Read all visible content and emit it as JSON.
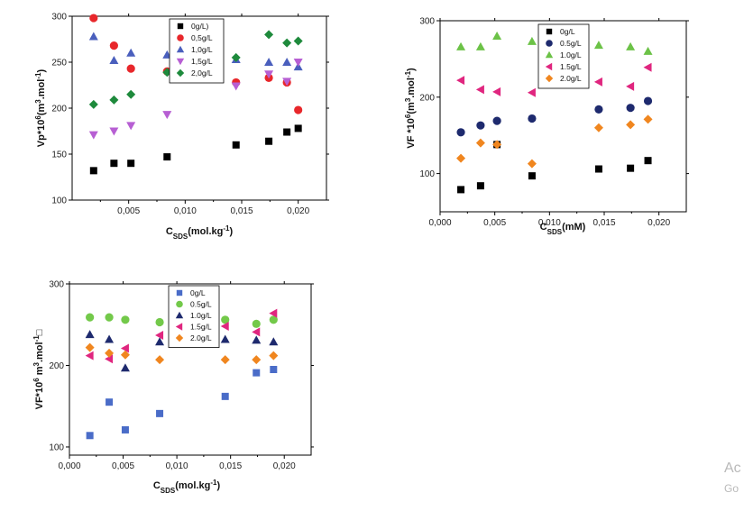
{
  "chart_data": [
    {
      "type": "scatter",
      "xlabel": {
        "main": "C",
        "sub": "SDS",
        "rest": "(mol.kg",
        "sup": "-1",
        "end": ")"
      },
      "ylabel": {
        "main": "Vp*10",
        "sup1": "6",
        "mid": "(m",
        "sup2": "3",
        "mid2": ".mol",
        "sup3": "-1",
        "end": ")"
      },
      "xlim": [
        0,
        0.0225
      ],
      "ylim": [
        100,
        300
      ],
      "xticks": [
        0.005,
        0.01,
        0.015,
        0.02
      ],
      "xtick_labels": [
        "0,005",
        "0,010",
        "0,015",
        "0,020"
      ],
      "yticks": [
        100,
        150,
        200,
        250,
        300
      ],
      "ytick_labels": [
        "100",
        "150",
        "200",
        "250",
        "300"
      ],
      "grid": false,
      "legend_position": "top-center",
      "series": [
        {
          "name": "0g/L)",
          "marker": "square",
          "color": "#000000",
          "points": [
            [
              0.0019,
              132
            ],
            [
              0.0037,
              140
            ],
            [
              0.0052,
              140
            ],
            [
              0.0084,
              147
            ],
            [
              0.0145,
              160
            ],
            [
              0.0174,
              164
            ],
            [
              0.019,
              174
            ],
            [
              0.02,
              178
            ]
          ]
        },
        {
          "name": "0,5g/L",
          "marker": "circle",
          "color": "#e8272b",
          "points": [
            [
              0.0019,
              298
            ],
            [
              0.0037,
              268
            ],
            [
              0.0052,
              243
            ],
            [
              0.0084,
              240
            ],
            [
              0.0145,
              228
            ],
            [
              0.0174,
              233
            ],
            [
              0.019,
              228
            ],
            [
              0.02,
              198
            ]
          ]
        },
        {
          "name": "1,0g/L",
          "marker": "triangle-up",
          "color": "#4a5fbd",
          "points": [
            [
              0.0019,
              278
            ],
            [
              0.0037,
              252
            ],
            [
              0.0052,
              260
            ],
            [
              0.0084,
              258
            ],
            [
              0.0145,
              253
            ],
            [
              0.0174,
              250
            ],
            [
              0.019,
              250
            ],
            [
              0.02,
              245
            ]
          ]
        },
        {
          "name": "1,5g/L",
          "marker": "triangle-down",
          "color": "#b75fd3",
          "points": [
            [
              0.0019,
              171
            ],
            [
              0.0037,
              175
            ],
            [
              0.0052,
              181
            ],
            [
              0.0084,
              193
            ],
            [
              0.0145,
              224
            ],
            [
              0.0174,
              237
            ],
            [
              0.019,
              229
            ],
            [
              0.02,
              250
            ]
          ]
        },
        {
          "name": "2,0g/L",
          "marker": "diamond",
          "color": "#1e8a3c",
          "points": [
            [
              0.0019,
              204
            ],
            [
              0.0037,
              209
            ],
            [
              0.0052,
              215
            ],
            [
              0.0084,
              239
            ],
            [
              0.0145,
              255
            ],
            [
              0.0174,
              280
            ],
            [
              0.019,
              271
            ],
            [
              0.02,
              273
            ]
          ]
        }
      ]
    },
    {
      "type": "scatter",
      "xlabel": {
        "main": "C",
        "sub": "SDS",
        "rest": "(mM)",
        "sup": "",
        "end": ""
      },
      "ylabel": {
        "main": "VF *10",
        "sup1": "6",
        "mid": "(m",
        "sup2": "3",
        "mid2": ".mol",
        "sup3": "-1",
        "end": ")"
      },
      "xlim": [
        0,
        0.0225
      ],
      "ylim": [
        50,
        300
      ],
      "xticks": [
        0.0,
        0.005,
        0.01,
        0.015,
        0.02
      ],
      "xtick_labels": [
        "0,000",
        "0,005",
        "0,010",
        "0,015",
        "0,020"
      ],
      "yticks": [
        100,
        200,
        300
      ],
      "ytick_labels": [
        "100",
        "200",
        "300"
      ],
      "grid": false,
      "legend_position": "top-center",
      "series": [
        {
          "name": "0g/L",
          "marker": "square",
          "color": "#000000",
          "points": [
            [
              0.0019,
              79
            ],
            [
              0.0037,
              84
            ],
            [
              0.0052,
              138
            ],
            [
              0.0084,
              97
            ],
            [
              0.0145,
              106
            ],
            [
              0.0174,
              107
            ],
            [
              0.019,
              117
            ]
          ]
        },
        {
          "name": "0.5g/L",
          "marker": "circle",
          "color": "#1e2a6e",
          "points": [
            [
              0.0019,
              154
            ],
            [
              0.0037,
              163
            ],
            [
              0.0052,
              169
            ],
            [
              0.0084,
              172
            ],
            [
              0.0145,
              184
            ],
            [
              0.0174,
              186
            ],
            [
              0.019,
              195
            ]
          ]
        },
        {
          "name": "1.0g/L",
          "marker": "triangle-up",
          "color": "#6cc247",
          "points": [
            [
              0.0019,
              266
            ],
            [
              0.0037,
              266
            ],
            [
              0.0052,
              280
            ],
            [
              0.0084,
              273
            ],
            [
              0.0145,
              268
            ],
            [
              0.0174,
              266
            ],
            [
              0.019,
              260
            ]
          ]
        },
        {
          "name": "1.5g/L",
          "marker": "triangle-left",
          "color": "#e0267f",
          "points": [
            [
              0.0019,
              222
            ],
            [
              0.0037,
              210
            ],
            [
              0.0052,
              207
            ],
            [
              0.0084,
              206
            ],
            [
              0.0145,
              220
            ],
            [
              0.0174,
              214
            ],
            [
              0.019,
              239
            ]
          ]
        },
        {
          "name": "2.0g/L",
          "marker": "diamond",
          "color": "#f0861f",
          "points": [
            [
              0.0019,
              120
            ],
            [
              0.0037,
              140
            ],
            [
              0.0052,
              138
            ],
            [
              0.0084,
              113
            ],
            [
              0.0145,
              160
            ],
            [
              0.0174,
              164
            ],
            [
              0.019,
              171
            ]
          ]
        }
      ]
    },
    {
      "type": "scatter",
      "xlabel": {
        "main": "C",
        "sub": "SDS",
        "rest": "(mol.kg",
        "sup": "-1",
        "end": ")"
      },
      "ylabel": {
        "main": "VF*10",
        "sup1": "6",
        "mid": " m",
        "sup2": "3",
        "mid2": ".mol",
        "sup3": "-1",
        "end": "□"
      },
      "xlim": [
        0,
        0.0225
      ],
      "ylim": [
        90,
        300
      ],
      "xticks": [
        0.0,
        0.005,
        0.01,
        0.015,
        0.02
      ],
      "xtick_labels": [
        "0,000",
        "0,005",
        "0,010",
        "0,015",
        "0,020"
      ],
      "yticks": [
        100,
        200,
        300
      ],
      "ytick_labels": [
        "100",
        "200",
        "300"
      ],
      "grid": false,
      "legend_position": "top-center",
      "series": [
        {
          "name": "0g/L",
          "marker": "square",
          "color": "#4a6cc8",
          "points": [
            [
              0.0019,
              114
            ],
            [
              0.0037,
              155
            ],
            [
              0.0052,
              121
            ],
            [
              0.0084,
              141
            ],
            [
              0.0145,
              162
            ],
            [
              0.0174,
              191
            ],
            [
              0.019,
              195
            ]
          ]
        },
        {
          "name": "0.5g/L",
          "marker": "circle",
          "color": "#73c94a",
          "points": [
            [
              0.0019,
              259
            ],
            [
              0.0037,
              259
            ],
            [
              0.0052,
              256
            ],
            [
              0.0084,
              253
            ],
            [
              0.0145,
              256
            ],
            [
              0.0174,
              251
            ],
            [
              0.019,
              256
            ]
          ]
        },
        {
          "name": "1.0g/L",
          "marker": "triangle-up",
          "color": "#1e2a6e",
          "points": [
            [
              0.0019,
              238
            ],
            [
              0.0037,
              232
            ],
            [
              0.0052,
              197
            ],
            [
              0.0084,
              229
            ],
            [
              0.0145,
              232
            ],
            [
              0.0174,
              231
            ],
            [
              0.019,
              229
            ]
          ]
        },
        {
          "name": "1.5g/L",
          "marker": "triangle-left",
          "color": "#e0267f",
          "points": [
            [
              0.0019,
              212
            ],
            [
              0.0037,
              208
            ],
            [
              0.0052,
              221
            ],
            [
              0.0084,
              237
            ],
            [
              0.0145,
              248
            ],
            [
              0.0174,
              241
            ],
            [
              0.019,
              264
            ]
          ]
        },
        {
          "name": "2.0g/L",
          "marker": "diamond",
          "color": "#f0861f",
          "points": [
            [
              0.0019,
              222
            ],
            [
              0.0037,
              215
            ],
            [
              0.0052,
              213
            ],
            [
              0.0084,
              207
            ],
            [
              0.0145,
              207
            ],
            [
              0.0174,
              207
            ],
            [
              0.019,
              212
            ]
          ]
        }
      ]
    }
  ],
  "watermark": {
    "line1": "Ac",
    "line2": "Go"
  }
}
